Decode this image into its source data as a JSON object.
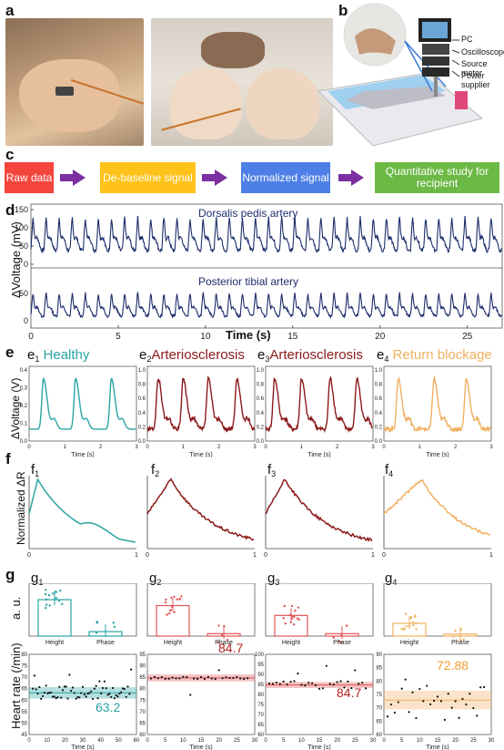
{
  "panels": {
    "a": "a",
    "b": "b",
    "c": "c",
    "d": "d",
    "e": "e",
    "f": "f",
    "g": "g"
  },
  "setup_labels": [
    "PC",
    "Oscilloscope",
    "Source meter",
    "Power supplier"
  ],
  "flow": {
    "steps": [
      "Raw data",
      "De-baseline signal",
      "Normalized signal",
      "Quantitative study for recipient"
    ],
    "colors": [
      "#f4453d",
      "#ffc21a",
      "#4d7fe6",
      "#6cb945"
    ]
  },
  "d": {
    "title1": "Dorsalis pedis artery",
    "title2": "Posterior tibial artery",
    "ylabel": "ΔVoltage (mV)",
    "xlabel": "Time (s)",
    "yticks": [
      "0",
      "50",
      "100",
      "150"
    ],
    "xticks": [
      "0",
      "5",
      "10",
      "15",
      "20",
      "25"
    ],
    "color": "#1c2d6b"
  },
  "e": {
    "titles": [
      {
        "l": "e",
        "s": "1",
        "t": "Healthy",
        "c": "#2aa3a3"
      },
      {
        "l": "e",
        "s": "2",
        "t": "Arteriosclerosis",
        "c": "#8b1a1a"
      },
      {
        "l": "e",
        "s": "3",
        "t": "Arteriosclerosis",
        "c": "#8b1a1a"
      },
      {
        "l": "e",
        "s": "4",
        "t": "Return blockage",
        "c": "#f0b060"
      }
    ],
    "ylabel": "ΔVoltage (V)",
    "xlabel": "Time (s)",
    "yticks": [
      "0.0",
      "0.1",
      "0.2",
      "0.3",
      "0.4"
    ],
    "yticks2": [
      "0.0",
      "0.2",
      "0.4",
      "0.6",
      "0.8",
      "1.0"
    ],
    "xticks": [
      "0",
      "1",
      "2",
      "3"
    ]
  },
  "f": {
    "titles": [
      {
        "l": "f",
        "s": "1"
      },
      {
        "l": "f",
        "s": "2"
      },
      {
        "l": "f",
        "s": "3"
      },
      {
        "l": "f",
        "s": "4"
      }
    ],
    "ylabel": "Normalized ΔR",
    "xticks": [
      "0",
      "1"
    ]
  },
  "g": {
    "titles": [
      {
        "l": "g",
        "s": "1"
      },
      {
        "l": "g",
        "s": "2"
      },
      {
        "l": "g",
        "s": "3"
      },
      {
        "l": "g",
        "s": "4"
      }
    ],
    "ylabel_top": "a. u.",
    "ylabel_bottom": "Heart rate (/min)",
    "bar_categories": [
      "Height",
      "Phase"
    ],
    "xlabel": "Time (s)",
    "hr_values": [
      "63.2",
      "84.7",
      "84.7",
      "72.88"
    ]
  },
  "chart_data": [
    {
      "type": "line",
      "title": "Dorsalis pedis artery",
      "ylabel": "ΔVoltage (mV)",
      "xlabel": "Time (s)",
      "xlim": [
        0,
        27
      ],
      "ylim": [
        0,
        170
      ],
      "series": [
        {
          "name": "Dorsalis pedis artery",
          "period_s": 0.75,
          "baseline": 75,
          "peak": 140
        }
      ]
    },
    {
      "type": "line",
      "title": "Posterior tibial artery",
      "ylabel": "ΔVoltage (mV)",
      "xlabel": "Time (s)",
      "xlim": [
        0,
        27
      ],
      "ylim": [
        0,
        80
      ],
      "series": [
        {
          "name": "Posterior tibial artery",
          "period_s": 0.75,
          "baseline": 28,
          "peak": 60
        }
      ]
    },
    {
      "type": "line",
      "title": "Healthy",
      "xlim": [
        0,
        3
      ],
      "ylim": [
        0,
        0.4
      ],
      "series": [
        {
          "peaks_s": [
            0.4,
            1.3,
            2.3
          ],
          "peak": 0.33,
          "base": 0.1
        }
      ]
    },
    {
      "type": "line",
      "title": "Arteriosclerosis",
      "xlim": [
        0,
        3
      ],
      "ylim": [
        0,
        1.0
      ],
      "series": [
        {
          "peaks_s": [
            0.3,
            1.0,
            1.7,
            2.5
          ],
          "peak": 0.95,
          "base": 0.1
        }
      ]
    },
    {
      "type": "line",
      "title": "Arteriosclerosis",
      "xlim": [
        0,
        3
      ],
      "ylim": [
        0,
        1.0
      ],
      "series": [
        {
          "peaks_s": [
            0.25,
            1.0,
            1.8,
            2.55
          ],
          "peak": 0.95,
          "base": 0.2
        }
      ]
    },
    {
      "type": "line",
      "title": "Return blockage",
      "xlim": [
        0,
        3
      ],
      "ylim": [
        0,
        1.0
      ],
      "series": [
        {
          "peaks_s": [
            0.4,
            1.4,
            2.3
          ],
          "peak": 0.9,
          "base": 0.2
        }
      ]
    },
    {
      "type": "bar",
      "categories": [
        "Height",
        "Phase"
      ],
      "values": [
        3.7,
        0.45
      ],
      "ylim": [
        0,
        5
      ]
    },
    {
      "type": "bar",
      "categories": [
        "Height",
        "Phase"
      ],
      "values": [
        3.1,
        0.25
      ],
      "ylim": [
        0,
        5
      ]
    },
    {
      "type": "bar",
      "categories": [
        "Height",
        "Phase"
      ],
      "values": [
        2.1,
        0.25
      ],
      "ylim": [
        0,
        5
      ]
    },
    {
      "type": "bar",
      "categories": [
        "Height",
        "Phase"
      ],
      "values": [
        1.3,
        0.2
      ],
      "ylim": [
        0,
        5
      ]
    },
    {
      "type": "scatter",
      "xlabel": "Time (s)",
      "ylabel": "Heart rate (/min)",
      "xlim": [
        0,
        60
      ],
      "ylim": [
        45,
        80
      ],
      "mean": 63.2
    },
    {
      "type": "scatter",
      "xlabel": "Time (s)",
      "xlim": [
        0,
        30
      ],
      "ylim": [
        60,
        95
      ],
      "mean": 84.7
    },
    {
      "type": "scatter",
      "xlabel": "Time (s)",
      "xlim": [
        0,
        30
      ],
      "ylim": [
        60,
        100
      ],
      "mean": 84.7
    },
    {
      "type": "scatter",
      "xlabel": "Time (s)",
      "xlim": [
        0,
        30
      ],
      "ylim": [
        60,
        90
      ],
      "mean": 72.88
    }
  ]
}
